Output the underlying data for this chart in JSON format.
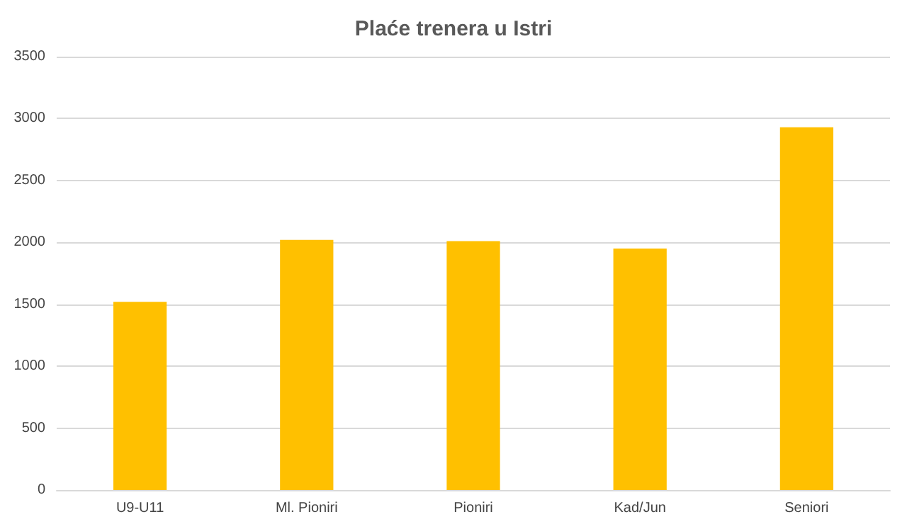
{
  "chart_data": {
    "type": "bar",
    "title": "Plaće trenera u Istri",
    "categories": [
      "U9-U11",
      "Ml. Pioniri",
      "Pioniri",
      "Kad/Jun",
      "Seniori"
    ],
    "values": [
      1520,
      2020,
      2010,
      1950,
      2930
    ],
    "color": "#ffc000",
    "ylim": [
      0,
      3500
    ],
    "yticks": [
      0,
      500,
      1000,
      1500,
      2000,
      2500,
      3000,
      3500
    ],
    "grid": "y"
  }
}
